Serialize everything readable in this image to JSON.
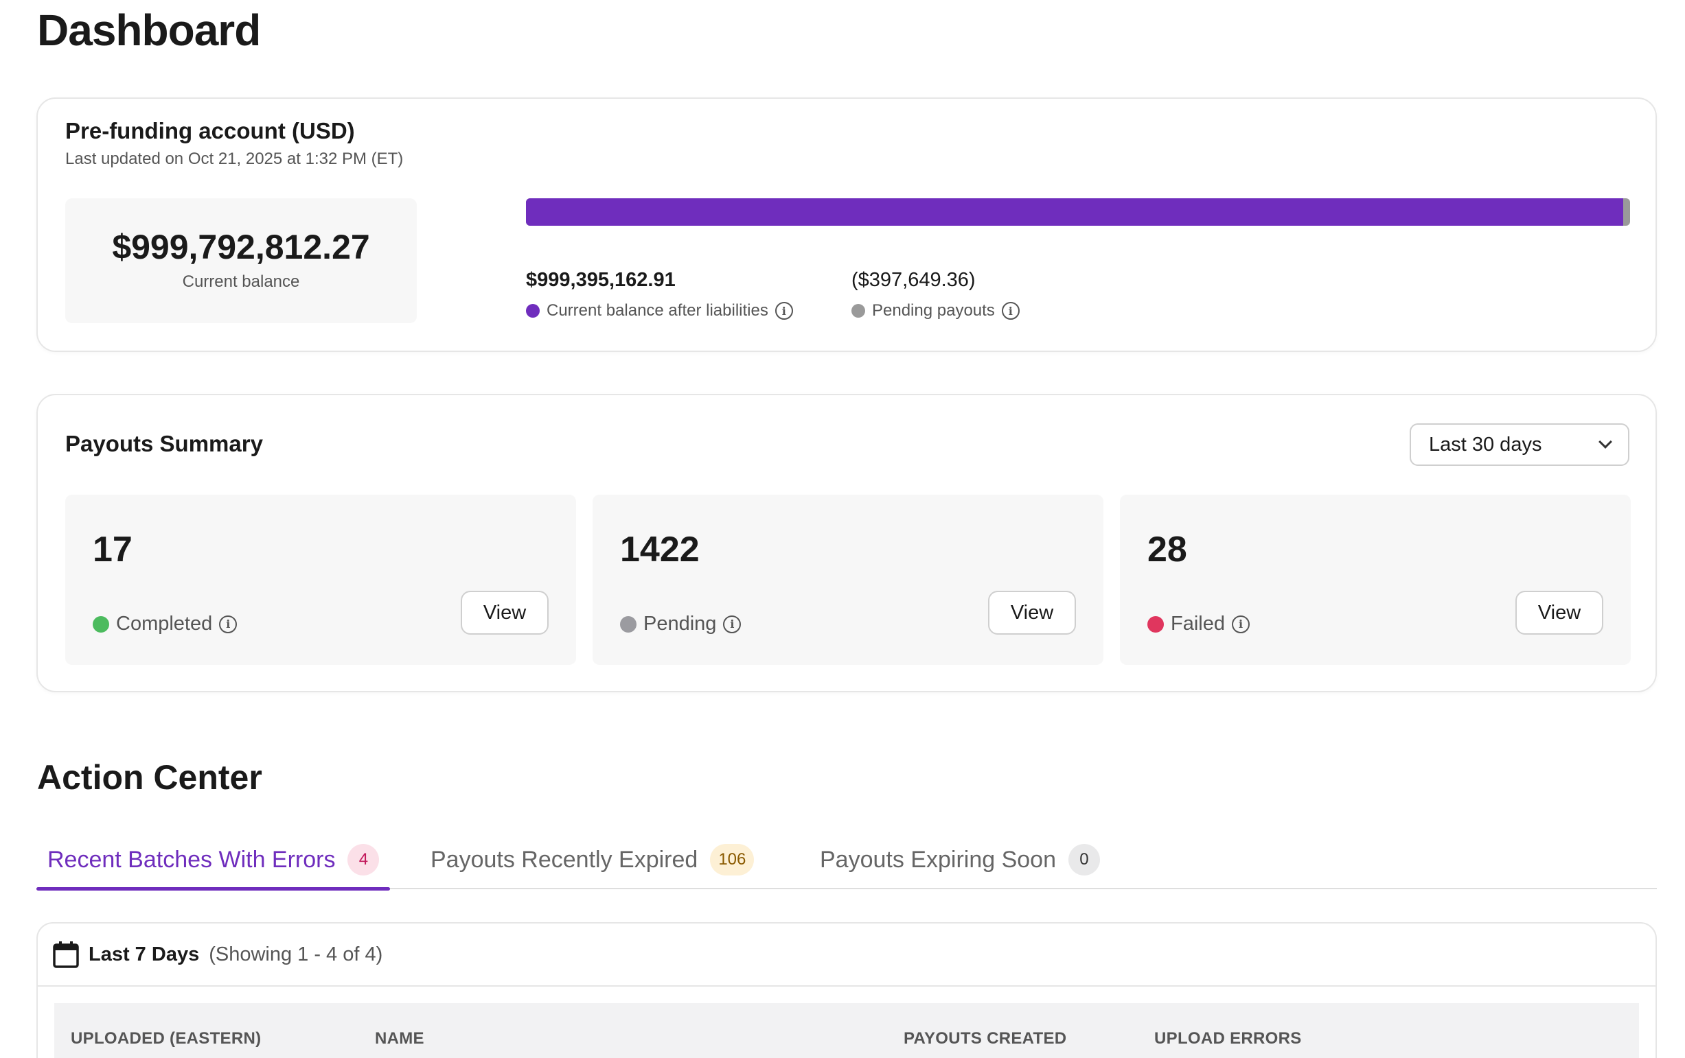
{
  "page": {
    "title": "Dashboard"
  },
  "prefunding": {
    "title": "Pre-funding account (USD)",
    "updated": "Last updated on Oct 21, 2025 at 1:32 PM (ET)",
    "current_balance": "$999,792,812.27",
    "current_balance_label": "Current balance",
    "bar_fill_fraction": 0.9938,
    "after_liabilities": "$999,395,162.91",
    "after_liabilities_label": "Current balance after liabilities",
    "pending": "($397,649.36)",
    "pending_label": "Pending payouts"
  },
  "summary": {
    "title": "Payouts Summary",
    "period": "Last 30 days",
    "stats": [
      {
        "count": "17",
        "label": "Completed",
        "color": "#4cbb5e",
        "button": "View"
      },
      {
        "count": "1422",
        "label": "Pending",
        "color": "#9b9ba0",
        "button": "View"
      },
      {
        "count": "28",
        "label": "Failed",
        "color": "#e0365e",
        "button": "View"
      }
    ]
  },
  "action_center": {
    "title": "Action Center",
    "tabs": [
      {
        "label": "Recent Batches With Errors",
        "count": "4",
        "badge_bg": "#fbe0e8",
        "badge_fg": "#c2185b"
      },
      {
        "label": "Payouts Recently Expired",
        "count": "106",
        "badge_bg": "#fdf0d5",
        "badge_fg": "#8a5a00"
      },
      {
        "label": "Payouts Expiring Soon",
        "count": "0",
        "badge_bg": "#e9e9ea",
        "badge_fg": "#333333"
      }
    ],
    "table": {
      "range": "Last 7 Days",
      "showing": "(Showing 1 - 4 of 4)",
      "columns": [
        "UPLOADED (EASTERN)",
        "NAME",
        "PAYOUTS CREATED",
        "UPLOAD ERRORS"
      ]
    }
  },
  "colors": {
    "accent": "#6f2dbd",
    "pending_gray": "#9a9a9a"
  },
  "icons": {
    "info": "info-icon",
    "calendar": "calendar-icon",
    "chevron": "chevron-down-icon"
  }
}
